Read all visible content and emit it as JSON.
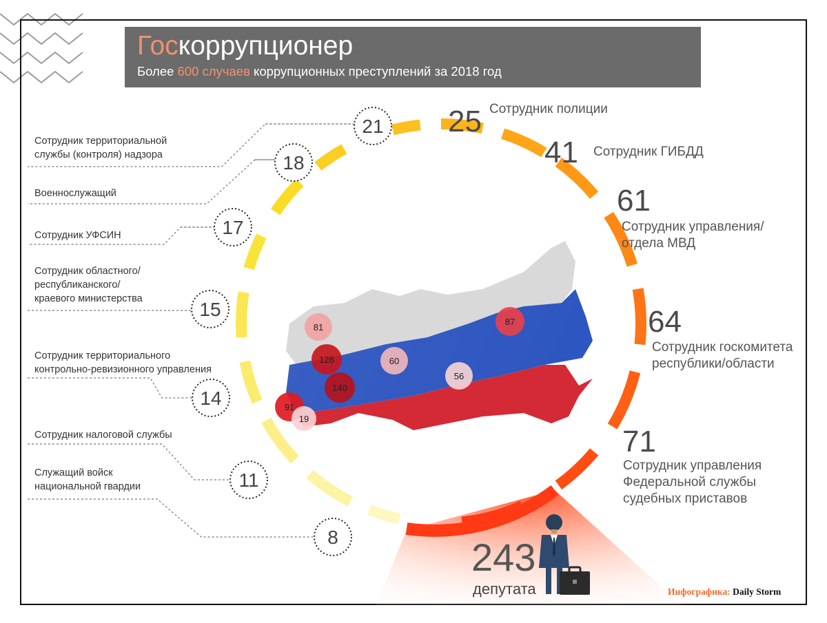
{
  "header": {
    "title_accent": "Гос",
    "title_rest": "коррупционер",
    "subtitle_pre": "Более ",
    "subtitle_accent": "600 случаев",
    "subtitle_post": " коррупционных преступлений за 2018 год"
  },
  "left_items": [
    {
      "value": "21",
      "label": "Сотрудник территориальной\nслужбы (контроля) надзора"
    },
    {
      "value": "18",
      "label": "Военнослужащий"
    },
    {
      "value": "17",
      "label": "Сотрудник УФСИН"
    },
    {
      "value": "15",
      "label": "Сотрудник областного/\nреспубликанского/\nкраевого министерства"
    },
    {
      "value": "14",
      "label": "Сотрудник территориального\nконтрольно-ревизионного управления"
    },
    {
      "value": "11",
      "label": "Сотрудник налоговой службы"
    },
    {
      "value": "8",
      "label": "Служащий войск\nнациональной гвардии"
    }
  ],
  "right_items": [
    {
      "value": "25",
      "label": "Сотрудник полиции"
    },
    {
      "value": "41",
      "label": "Сотрудник ГИБДД"
    },
    {
      "value": "61",
      "label": "Сотрудник управления/\nотдела МВД"
    },
    {
      "value": "64",
      "label": "Сотрудник госкомитета\nреспублики/области"
    },
    {
      "value": "71",
      "label": "Сотрудник управления\nФедеральной службы\nсудебных приставов"
    }
  ],
  "deputies": {
    "value": "243",
    "label": "депутата"
  },
  "map_bubbles": [
    {
      "value": "81",
      "color": "#f2a3a3"
    },
    {
      "value": "128",
      "color": "#c8171d"
    },
    {
      "value": "140",
      "color": "#b5121a"
    },
    {
      "value": "91",
      "color": "#e01a22"
    },
    {
      "value": "19",
      "color": "#f7d2d4"
    },
    {
      "value": "60",
      "color": "#f0b5b8"
    },
    {
      "value": "56",
      "color": "#f5d3d5"
    },
    {
      "value": "87",
      "color": "#e8404a"
    }
  ],
  "credit": {
    "prefix": "Инфографика:",
    "brand": "Daily Storm"
  },
  "colors": {
    "accent": "#f2916f",
    "header_bg": "#6b6b6b",
    "arc_start": "#fdf7c0",
    "arc_end": "#ff3a14"
  },
  "icons": [
    "businessman-icon",
    "briefcase-icon"
  ]
}
